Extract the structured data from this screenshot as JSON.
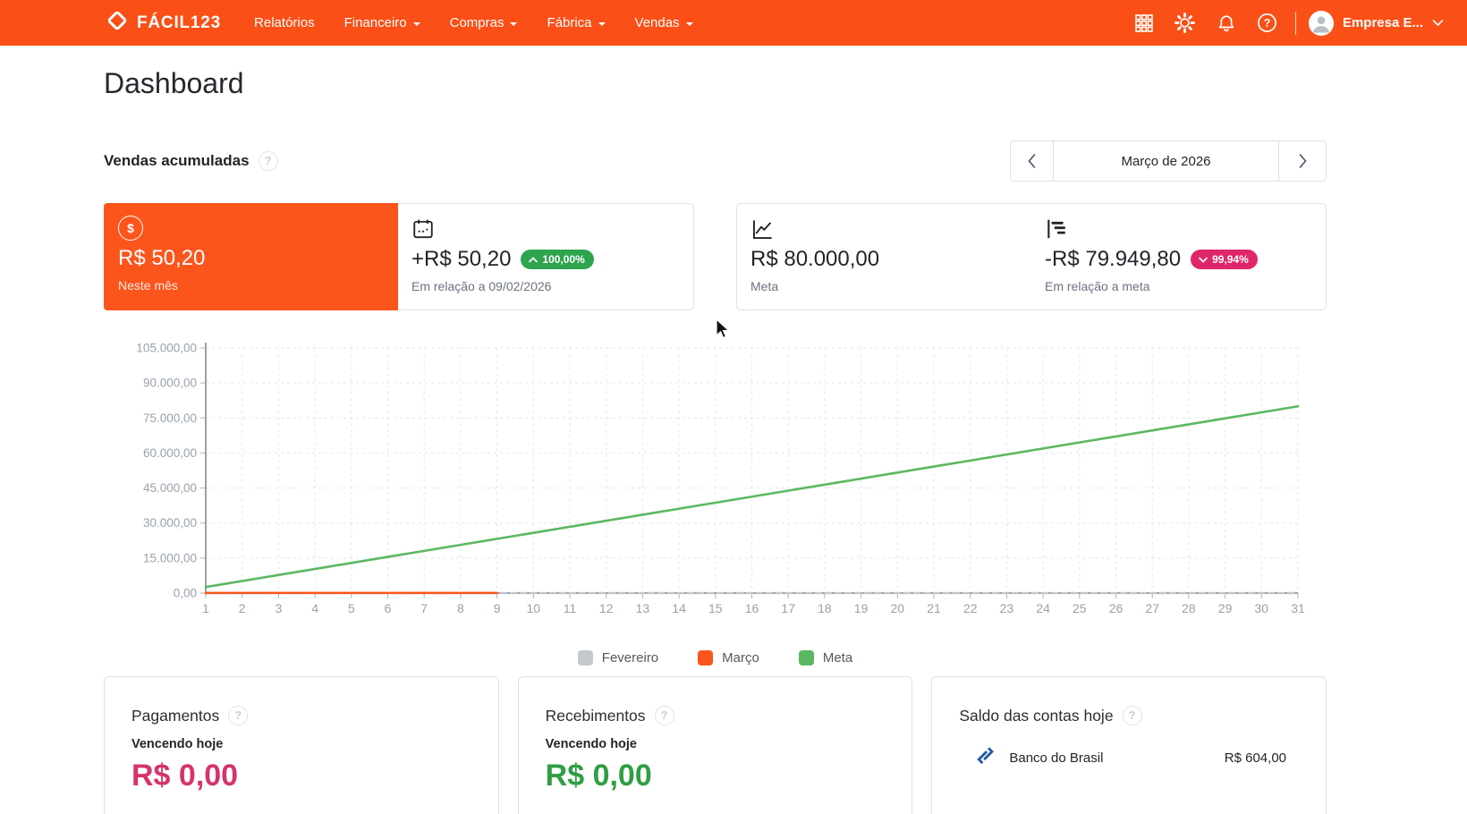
{
  "navbar": {
    "brand": "FÁCIL123",
    "links": [
      {
        "label": "Relatórios",
        "dropdown": false
      },
      {
        "label": "Financeiro",
        "dropdown": true
      },
      {
        "label": "Compras",
        "dropdown": true
      },
      {
        "label": "Fábrica",
        "dropdown": true
      },
      {
        "label": "Vendas",
        "dropdown": true
      }
    ],
    "account": {
      "name": "Empresa E..."
    }
  },
  "glyphs": {
    "question": "?",
    "dollar": "$"
  },
  "page": {
    "title": "Dashboard"
  },
  "sales": {
    "section_title": "Vendas acumuladas",
    "month_nav": {
      "current": "Março de 2026"
    },
    "stats": [
      {
        "icon": "dollar-circle",
        "value": "R$ 50,20",
        "label": "Neste mês"
      },
      {
        "icon": "calendar",
        "value": "+R$ 50,20",
        "badge": "100,00%",
        "badge_direction": "up",
        "label": "Em relação a 09/02/2026"
      },
      {
        "icon": "line-chart",
        "value": "R$ 80.000,00",
        "label": "Meta"
      },
      {
        "icon": "bars",
        "value": "-R$ 79.949,80",
        "badge": "99,94%",
        "badge_direction": "down",
        "label": "Em relação a meta"
      }
    ]
  },
  "chart_data": {
    "type": "line",
    "x": [
      1,
      2,
      3,
      4,
      5,
      6,
      7,
      8,
      9,
      10,
      11,
      12,
      13,
      14,
      15,
      16,
      17,
      18,
      19,
      20,
      21,
      22,
      23,
      24,
      25,
      26,
      27,
      28,
      29,
      30,
      31
    ],
    "ylim": [
      0,
      105000
    ],
    "grid": true,
    "legend_position": "bottom",
    "y_ticks": {
      "values": [
        0,
        15000,
        30000,
        45000,
        60000,
        75000,
        90000,
        105000
      ],
      "labels": [
        "0,00",
        "15.000,00",
        "30.000,00",
        "45.000,00",
        "60.000,00",
        "75.000,00",
        "90.000,00",
        "105.000,00"
      ]
    },
    "series": [
      {
        "name": "Fevereiro",
        "color": "#C3C8CD",
        "style": "dashed",
        "x": [
          1,
          2,
          3,
          4,
          5,
          6,
          7,
          8,
          9,
          10,
          11,
          12,
          13,
          14,
          15,
          16,
          17,
          18,
          19,
          20,
          21,
          22,
          23,
          24,
          25,
          26,
          27,
          28,
          29,
          30,
          31
        ],
        "values": [
          0,
          0,
          0,
          0,
          0,
          0,
          0,
          0,
          0,
          0,
          0,
          0,
          0,
          0,
          0,
          0,
          0,
          0,
          0,
          0,
          0,
          0,
          0,
          0,
          0,
          0,
          0,
          0,
          0,
          0,
          0
        ]
      },
      {
        "name": "Março",
        "color": "#FB551C",
        "style": "solid",
        "x": [
          1,
          2,
          3,
          4,
          5,
          6,
          7,
          8,
          9
        ],
        "values": [
          50.2,
          50.2,
          50.2,
          50.2,
          50.2,
          50.2,
          50.2,
          50.2,
          50.2
        ]
      },
      {
        "name": "Meta",
        "color": "#5CB860",
        "style": "solid",
        "x": [
          1,
          2,
          3,
          4,
          5,
          6,
          7,
          8,
          9,
          10,
          11,
          12,
          13,
          14,
          15,
          16,
          17,
          18,
          19,
          20,
          21,
          22,
          23,
          24,
          25,
          26,
          27,
          28,
          29,
          30,
          31
        ],
        "values": [
          2580.65,
          5161.29,
          7741.94,
          10322.58,
          12903.23,
          15483.87,
          18064.52,
          20645.16,
          23225.81,
          25806.45,
          28387.1,
          30967.74,
          33548.39,
          36129.03,
          38709.68,
          41290.32,
          43870.97,
          46451.61,
          49032.26,
          51612.9,
          54193.55,
          56774.19,
          59354.84,
          61935.48,
          64516.13,
          67096.77,
          69677.42,
          72258.06,
          74838.71,
          77419.35,
          80000.0
        ]
      }
    ]
  },
  "bottom_cards": {
    "pagamentos": {
      "title": "Pagamentos",
      "subtitle": "Vencendo hoje",
      "value": "R$ 0,00"
    },
    "recebimentos": {
      "title": "Recebimentos",
      "subtitle": "Vencendo hoje",
      "value": "R$ 0,00"
    },
    "saldo": {
      "title": "Saldo das contas hoje",
      "accounts": [
        {
          "bank": "Banco do Brasil",
          "value": "R$ 604,00"
        }
      ]
    }
  },
  "colors": {
    "navbar": "#FA4F16",
    "card_orange": "#FB551C",
    "badge_up": "#2EA44F",
    "badge_down": "#E0266B",
    "meta_green": "#5CB860",
    "fevereiro_gray": "#C3C8CD",
    "marco_orange": "#FB551C",
    "pagamentos_value": "#D6336C",
    "recebimentos_value": "#2F9E44",
    "bb_blue": "#1F5BA8"
  }
}
